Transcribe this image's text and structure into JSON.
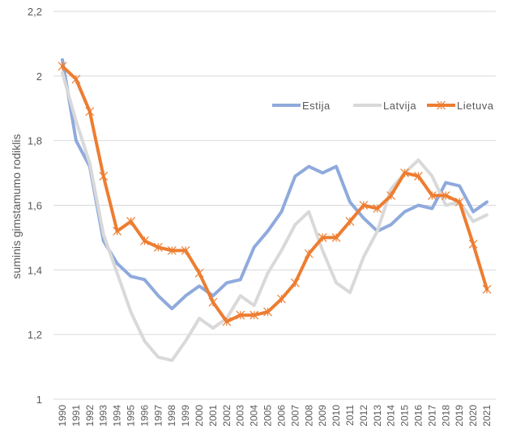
{
  "chart_data": {
    "type": "line",
    "title": "",
    "xlabel": "",
    "ylabel": "suminis gimstamumo rodiklis",
    "ylim": [
      1,
      2.2
    ],
    "yticks": [
      "1",
      "1,2",
      "1,4",
      "1,6",
      "1,8",
      "2",
      "2,2"
    ],
    "ytick_values": [
      1,
      1.2,
      1.4,
      1.6,
      1.8,
      2,
      2.2
    ],
    "grid": true,
    "legend_position": "top-right",
    "x": [
      "1990",
      "1991",
      "1992",
      "1993",
      "1994",
      "1995",
      "1996",
      "1997",
      "1998",
      "1999",
      "2000",
      "2001",
      "2002",
      "2003",
      "2004",
      "2005",
      "2006",
      "2007",
      "2008",
      "2009",
      "2010",
      "2011",
      "2012",
      "2013",
      "2014",
      "2015",
      "2016",
      "2017",
      "2018",
      "2019",
      "2020",
      "2021"
    ],
    "series": [
      {
        "name": "Estija",
        "color": "#8FAADC",
        "marker": "none",
        "values": [
          2.05,
          1.8,
          1.72,
          1.49,
          1.42,
          1.38,
          1.37,
          1.32,
          1.28,
          1.32,
          1.35,
          1.32,
          1.36,
          1.37,
          1.47,
          1.52,
          1.58,
          1.69,
          1.72,
          1.7,
          1.72,
          1.61,
          1.56,
          1.52,
          1.54,
          1.58,
          1.6,
          1.59,
          1.67,
          1.66,
          1.58,
          1.61
        ]
      },
      {
        "name": "Latvija",
        "color": "#D9D9D9",
        "marker": "none",
        "values": [
          2.01,
          1.86,
          1.73,
          1.51,
          1.39,
          1.27,
          1.18,
          1.13,
          1.12,
          1.18,
          1.25,
          1.22,
          1.25,
          1.32,
          1.29,
          1.39,
          1.46,
          1.54,
          1.58,
          1.46,
          1.36,
          1.33,
          1.44,
          1.52,
          1.65,
          1.7,
          1.74,
          1.69,
          1.6,
          1.61,
          1.55,
          1.57
        ]
      },
      {
        "name": "Lietuva",
        "color": "#ED7D31",
        "marker": "star",
        "values": [
          2.03,
          1.99,
          1.89,
          1.69,
          1.52,
          1.55,
          1.49,
          1.47,
          1.46,
          1.46,
          1.39,
          1.3,
          1.24,
          1.26,
          1.26,
          1.27,
          1.31,
          1.36,
          1.45,
          1.5,
          1.5,
          1.55,
          1.6,
          1.59,
          1.63,
          1.7,
          1.69,
          1.63,
          1.63,
          1.61,
          1.48,
          1.34
        ]
      }
    ]
  }
}
